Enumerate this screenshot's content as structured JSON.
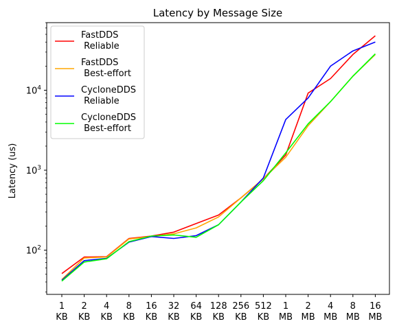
{
  "chart_data": {
    "type": "line",
    "title": "Latency by Message Size",
    "xlabel": "",
    "ylabel": "Latency (us)",
    "yscale": "log",
    "ylim": [
      28,
      70000
    ],
    "legend_position": "upper-left",
    "categories": [
      [
        "1",
        "KB"
      ],
      [
        "2",
        "KB"
      ],
      [
        "4",
        "KB"
      ],
      [
        "8",
        "KB"
      ],
      [
        "16",
        "KB"
      ],
      [
        "32",
        "KB"
      ],
      [
        "64",
        "KB"
      ],
      [
        "128",
        "KB"
      ],
      [
        "256",
        "KB"
      ],
      [
        "512",
        "KB"
      ],
      [
        "1",
        "MB"
      ],
      [
        "2",
        "MB"
      ],
      [
        "4",
        "MB"
      ],
      [
        "8",
        "MB"
      ],
      [
        "16",
        "MB"
      ]
    ],
    "y_ticks": [
      {
        "base": "10",
        "exp": "2"
      },
      {
        "base": "10",
        "exp": "3"
      },
      {
        "base": "10",
        "exp": "4"
      }
    ],
    "series": [
      {
        "name": [
          "FastDDS",
          " Reliable"
        ],
        "color": "#ff0000",
        "values": [
          51,
          82,
          83,
          140,
          150,
          168,
          215,
          275,
          450,
          780,
          1550,
          9200,
          14000,
          28000,
          48000
        ]
      },
      {
        "name": [
          "FastDDS",
          " Best-effort"
        ],
        "color": "#ffa500",
        "values": [
          43,
          80,
          82,
          138,
          148,
          160,
          190,
          260,
          450,
          780,
          1450,
          3600,
          7200,
          15000,
          28000
        ]
      },
      {
        "name": [
          "CycloneDDS",
          " Reliable"
        ],
        "color": "#0000ff",
        "values": [
          42,
          74,
          79,
          126,
          148,
          140,
          152,
          208,
          400,
          800,
          4300,
          8000,
          20000,
          31000,
          40000
        ]
      },
      {
        "name": [
          "CycloneDDS",
          " Best-effort"
        ],
        "color": "#00ff00",
        "values": [
          41,
          71,
          78,
          128,
          150,
          155,
          145,
          208,
          400,
          740,
          1650,
          3800,
          7200,
          15000,
          28500
        ]
      }
    ]
  }
}
